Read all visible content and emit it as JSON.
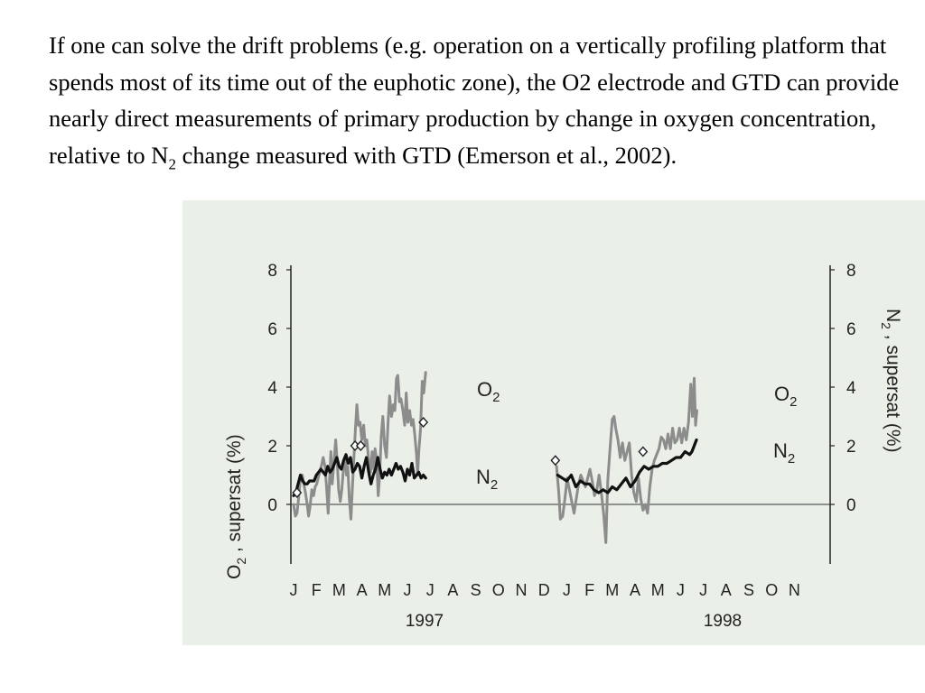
{
  "paragraph": {
    "part1": "If one can solve the drift problems (e.g. operation on a vertically profiling platform that spends most of its time out of the euphotic zone), the O2 electrode and GTD can provide nearly direct measurements of primary production by change in oxygen concentration, relative to N",
    "sub": "2",
    "part2": " change measured with GTD (Emerson et al., 2002)."
  },
  "chart_data": {
    "type": "line",
    "months": [
      "J",
      "F",
      "M",
      "A",
      "M",
      "J",
      "J",
      "A",
      "S",
      "O",
      "N",
      "D",
      "J",
      "F",
      "M",
      "A",
      "M",
      "J",
      "J",
      "A",
      "S",
      "O",
      "N"
    ],
    "years": [
      "1997",
      "1998"
    ],
    "left_axis": {
      "label_main": "O",
      "label_sub": "2",
      "label_rest": " ,  supersat   (%)",
      "ticks": [
        "8",
        "6",
        "4",
        "2",
        "0"
      ],
      "ylim": [
        -2,
        8
      ]
    },
    "right_axis": {
      "label_main": "N",
      "label_sub": "2",
      "label_rest": " ,  supersat   (%)",
      "ticks": [
        "8",
        "6",
        "4",
        "2",
        "0"
      ],
      "ylim": [
        -2,
        8
      ]
    },
    "series": [
      {
        "name": "O2",
        "label_main": "O",
        "label_sub": "2",
        "color": "#8c8c8c",
        "segments": [
          [
            [
              0.0,
              0.0
            ],
            [
              0.08,
              -0.4
            ],
            [
              0.15,
              -0.3
            ],
            [
              0.22,
              0.2
            ],
            [
              0.3,
              0.9
            ],
            [
              0.38,
              1.0
            ],
            [
              0.45,
              0.7
            ],
            [
              0.52,
              0.4
            ],
            [
              0.6,
              0.0
            ],
            [
              0.66,
              -0.4
            ],
            [
              0.72,
              -0.1
            ],
            [
              0.8,
              0.5
            ],
            [
              0.88,
              0.3
            ],
            [
              0.95,
              0.6
            ],
            [
              1.02,
              0.7
            ],
            [
              1.08,
              0.9
            ],
            [
              1.15,
              1.1
            ],
            [
              1.22,
              1.3
            ],
            [
              1.3,
              1.6
            ],
            [
              1.38,
              1.3
            ],
            [
              1.45,
              0.6
            ],
            [
              1.52,
              -0.3
            ],
            [
              1.58,
              0.8
            ],
            [
              1.64,
              1.8
            ],
            [
              1.7,
              0.7
            ],
            [
              1.78,
              1.5
            ],
            [
              1.85,
              2.2
            ],
            [
              1.92,
              1.4
            ],
            [
              1.98,
              0.5
            ],
            [
              2.05,
              0.1
            ],
            [
              2.12,
              0.5
            ],
            [
              2.2,
              1.3
            ],
            [
              2.26,
              1.6
            ],
            [
              2.32,
              1.0
            ],
            [
              2.38,
              1.3
            ],
            [
              2.45,
              0.2
            ],
            [
              2.52,
              -0.5
            ],
            [
              2.58,
              0.5
            ],
            [
              2.65,
              1.6
            ],
            [
              2.72,
              2.6
            ],
            [
              2.78,
              3.4
            ],
            [
              2.85,
              2.7
            ],
            [
              2.92,
              2.8
            ],
            [
              3.0,
              2.2
            ],
            [
              3.08,
              2.7
            ],
            [
              3.15,
              2.0
            ],
            [
              3.22,
              2.2
            ],
            [
              3.3,
              1.5
            ],
            [
              3.38,
              1.1
            ],
            [
              3.45,
              1.8
            ],
            [
              3.52,
              1.2
            ],
            [
              3.58,
              1.9
            ],
            [
              3.65,
              1.5
            ],
            [
              3.72,
              0.3
            ],
            [
              3.78,
              1.0
            ],
            [
              3.85,
              2.3
            ],
            [
              3.92,
              3.0
            ],
            [
              4.0,
              2.0
            ],
            [
              4.08,
              1.6
            ],
            [
              4.15,
              2.8
            ],
            [
              4.22,
              3.7
            ],
            [
              4.3,
              3.0
            ],
            [
              4.38,
              3.4
            ],
            [
              4.45,
              3.2
            ],
            [
              4.52,
              4.3
            ],
            [
              4.58,
              4.4
            ],
            [
              4.65,
              3.5
            ],
            [
              4.72,
              3.6
            ],
            [
              4.8,
              3.2
            ],
            [
              4.88,
              2.7
            ],
            [
              4.95,
              3.8
            ],
            [
              5.02,
              2.8
            ],
            [
              5.1,
              3.2
            ],
            [
              5.18,
              2.7
            ],
            [
              5.25,
              2.9
            ],
            [
              5.32,
              2.4
            ],
            [
              5.4,
              1.7
            ],
            [
              5.45,
              1.0
            ],
            [
              5.5,
              1.8
            ],
            [
              5.58,
              2.6
            ],
            [
              5.65,
              4.2
            ],
            [
              5.72,
              3.8
            ],
            [
              5.8,
              4.5
            ]
          ],
          [
            [
              11.55,
              1.3
            ],
            [
              11.65,
              0.4
            ],
            [
              11.72,
              -0.5
            ],
            [
              11.82,
              -0.4
            ],
            [
              11.92,
              0.2
            ],
            [
              12.02,
              0.9
            ],
            [
              12.12,
              0.5
            ],
            [
              12.22,
              0.1
            ],
            [
              12.32,
              -0.3
            ],
            [
              12.42,
              0.2
            ],
            [
              12.52,
              0.7
            ],
            [
              12.62,
              1.0
            ],
            [
              12.72,
              0.8
            ],
            [
              12.82,
              0.6
            ],
            [
              12.92,
              0.9
            ],
            [
              13.02,
              1.2
            ],
            [
              13.12,
              0.8
            ],
            [
              13.22,
              0.3
            ],
            [
              13.32,
              0.5
            ],
            [
              13.42,
              1.0
            ],
            [
              13.52,
              0.4
            ],
            [
              13.62,
              -0.3
            ],
            [
              13.72,
              -1.3
            ],
            [
              13.8,
              0.8
            ],
            [
              13.9,
              1.9
            ],
            [
              14.0,
              2.9
            ],
            [
              14.08,
              3.0
            ],
            [
              14.15,
              2.6
            ],
            [
              14.25,
              2.2
            ],
            [
              14.35,
              1.6
            ],
            [
              14.45,
              2.1
            ],
            [
              14.55,
              1.5
            ],
            [
              14.65,
              1.8
            ],
            [
              14.75,
              2.1
            ],
            [
              14.85,
              1.0
            ],
            [
              14.95,
              0.4
            ],
            [
              15.05,
              0.1
            ],
            [
              15.15,
              0.9
            ],
            [
              15.25,
              0.2
            ],
            [
              15.35,
              -0.2
            ],
            [
              15.45,
              0.0
            ],
            [
              15.55,
              -0.3
            ],
            [
              15.65,
              0.6
            ],
            [
              15.75,
              1.2
            ],
            [
              15.85,
              1.5
            ],
            [
              15.95,
              1.7
            ],
            [
              16.05,
              1.9
            ],
            [
              16.15,
              2.3
            ],
            [
              16.25,
              2.2
            ],
            [
              16.35,
              1.9
            ],
            [
              16.45,
              2.4
            ],
            [
              16.55,
              1.9
            ],
            [
              16.65,
              2.6
            ],
            [
              16.75,
              2.1
            ],
            [
              16.85,
              2.2
            ],
            [
              16.95,
              2.6
            ],
            [
              17.05,
              2.1
            ],
            [
              17.15,
              2.6
            ],
            [
              17.25,
              2.2
            ],
            [
              17.35,
              2.8
            ],
            [
              17.45,
              4.1
            ],
            [
              17.52,
              3.0
            ],
            [
              17.6,
              4.3
            ],
            [
              17.66,
              2.7
            ],
            [
              17.72,
              3.2
            ]
          ]
        ]
      },
      {
        "name": "N2",
        "label_main": "N",
        "label_sub": "2",
        "color": "#111111",
        "segments": [
          [
            [
              0.0,
              0.3
            ],
            [
              0.1,
              0.4
            ],
            [
              0.2,
              0.7
            ],
            [
              0.3,
              1.0
            ],
            [
              0.4,
              0.8
            ],
            [
              0.5,
              0.7
            ],
            [
              0.6,
              0.7
            ],
            [
              0.7,
              0.8
            ],
            [
              0.8,
              0.8
            ],
            [
              0.9,
              0.8
            ],
            [
              1.0,
              1.0
            ],
            [
              1.1,
              1.1
            ],
            [
              1.2,
              1.2
            ],
            [
              1.3,
              1.1
            ],
            [
              1.4,
              1.0
            ],
            [
              1.5,
              1.3
            ],
            [
              1.6,
              1.1
            ],
            [
              1.7,
              1.2
            ],
            [
              1.8,
              1.4
            ],
            [
              1.9,
              1.6
            ],
            [
              2.0,
              1.3
            ],
            [
              2.1,
              1.2
            ],
            [
              2.2,
              1.5
            ],
            [
              2.3,
              1.7
            ],
            [
              2.4,
              1.4
            ],
            [
              2.5,
              1.6
            ],
            [
              2.6,
              1.1
            ],
            [
              2.7,
              1.2
            ],
            [
              2.8,
              1.4
            ],
            [
              2.9,
              1.3
            ],
            [
              3.0,
              0.9
            ],
            [
              3.1,
              1.3
            ],
            [
              3.2,
              1.6
            ],
            [
              3.3,
              1.1
            ],
            [
              3.4,
              0.7
            ],
            [
              3.5,
              1.0
            ],
            [
              3.6,
              1.2
            ],
            [
              3.7,
              1.6
            ],
            [
              3.8,
              1.2
            ],
            [
              3.9,
              0.9
            ],
            [
              4.0,
              1.1
            ],
            [
              4.1,
              1.0
            ],
            [
              4.2,
              1.2
            ],
            [
              4.3,
              1.0
            ],
            [
              4.4,
              1.2
            ],
            [
              4.5,
              1.4
            ],
            [
              4.6,
              1.2
            ],
            [
              4.7,
              1.3
            ],
            [
              4.8,
              1.1
            ],
            [
              4.9,
              0.8
            ],
            [
              5.0,
              1.2
            ],
            [
              5.1,
              1.0
            ],
            [
              5.2,
              1.4
            ],
            [
              5.3,
              0.9
            ],
            [
              5.4,
              1.0
            ],
            [
              5.5,
              1.1
            ],
            [
              5.6,
              0.9
            ],
            [
              5.7,
              1.0
            ],
            [
              5.8,
              0.9
            ]
          ],
          [
            [
              11.6,
              1.0
            ],
            [
              11.8,
              0.9
            ],
            [
              12.0,
              0.8
            ],
            [
              12.2,
              1.0
            ],
            [
              12.4,
              0.6
            ],
            [
              12.6,
              0.8
            ],
            [
              12.8,
              0.7
            ],
            [
              13.0,
              0.7
            ],
            [
              13.2,
              0.5
            ],
            [
              13.4,
              0.4
            ],
            [
              13.6,
              0.5
            ],
            [
              13.8,
              0.4
            ],
            [
              14.0,
              0.6
            ],
            [
              14.2,
              0.5
            ],
            [
              14.4,
              0.7
            ],
            [
              14.6,
              0.9
            ],
            [
              14.8,
              0.6
            ],
            [
              15.0,
              0.8
            ],
            [
              15.2,
              1.1
            ],
            [
              15.4,
              1.3
            ],
            [
              15.6,
              1.2
            ],
            [
              15.8,
              1.3
            ],
            [
              16.0,
              1.3
            ],
            [
              16.2,
              1.4
            ],
            [
              16.4,
              1.4
            ],
            [
              16.6,
              1.5
            ],
            [
              16.8,
              1.6
            ],
            [
              17.0,
              1.6
            ],
            [
              17.2,
              1.8
            ],
            [
              17.4,
              1.7
            ],
            [
              17.5,
              1.8
            ],
            [
              17.6,
              2.0
            ],
            [
              17.7,
              2.2
            ]
          ]
        ]
      }
    ],
    "discrete_points": [
      [
        0.15,
        0.4
      ],
      [
        2.7,
        2.0
      ],
      [
        2.95,
        2.0
      ],
      [
        5.7,
        2.8
      ],
      [
        11.5,
        1.5
      ],
      [
        15.35,
        1.8
      ]
    ]
  }
}
